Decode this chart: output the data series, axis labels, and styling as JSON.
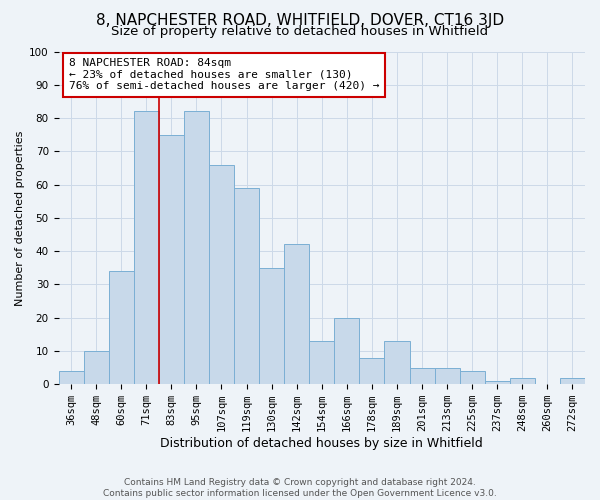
{
  "title": "8, NAPCHESTER ROAD, WHITFIELD, DOVER, CT16 3JD",
  "subtitle": "Size of property relative to detached houses in Whitfield",
  "xlabel": "Distribution of detached houses by size in Whitfield",
  "ylabel": "Number of detached properties",
  "footer_line1": "Contains HM Land Registry data © Crown copyright and database right 2024.",
  "footer_line2": "Contains public sector information licensed under the Open Government Licence v3.0.",
  "bar_labels": [
    "36sqm",
    "48sqm",
    "60sqm",
    "71sqm",
    "83sqm",
    "95sqm",
    "107sqm",
    "119sqm",
    "130sqm",
    "142sqm",
    "154sqm",
    "166sqm",
    "178sqm",
    "189sqm",
    "201sqm",
    "213sqm",
    "225sqm",
    "237sqm",
    "248sqm",
    "260sqm",
    "272sqm"
  ],
  "bar_values": [
    4,
    10,
    34,
    82,
    75,
    82,
    66,
    59,
    35,
    42,
    13,
    20,
    8,
    13,
    5,
    5,
    4,
    1,
    2,
    0,
    2
  ],
  "bar_color": "#c8d9ea",
  "bar_edge_color": "#7bafd4",
  "annotation_box_text": "8 NAPCHESTER ROAD: 84sqm\n← 23% of detached houses are smaller (130)\n76% of semi-detached houses are larger (420) →",
  "annotation_box_color": "#ffffff",
  "annotation_box_edge_color": "#cc0000",
  "vline_x": 3.5,
  "vline_color": "#cc0000",
  "ylim": [
    0,
    100
  ],
  "yticks": [
    0,
    10,
    20,
    30,
    40,
    50,
    60,
    70,
    80,
    90,
    100
  ],
  "grid_color": "#ccd9e8",
  "bg_color": "#eef3f8",
  "title_fontsize": 11,
  "subtitle_fontsize": 9.5,
  "xlabel_fontsize": 9,
  "ylabel_fontsize": 8,
  "tick_fontsize": 7.5,
  "annotation_fontsize": 8,
  "footer_fontsize": 6.5
}
